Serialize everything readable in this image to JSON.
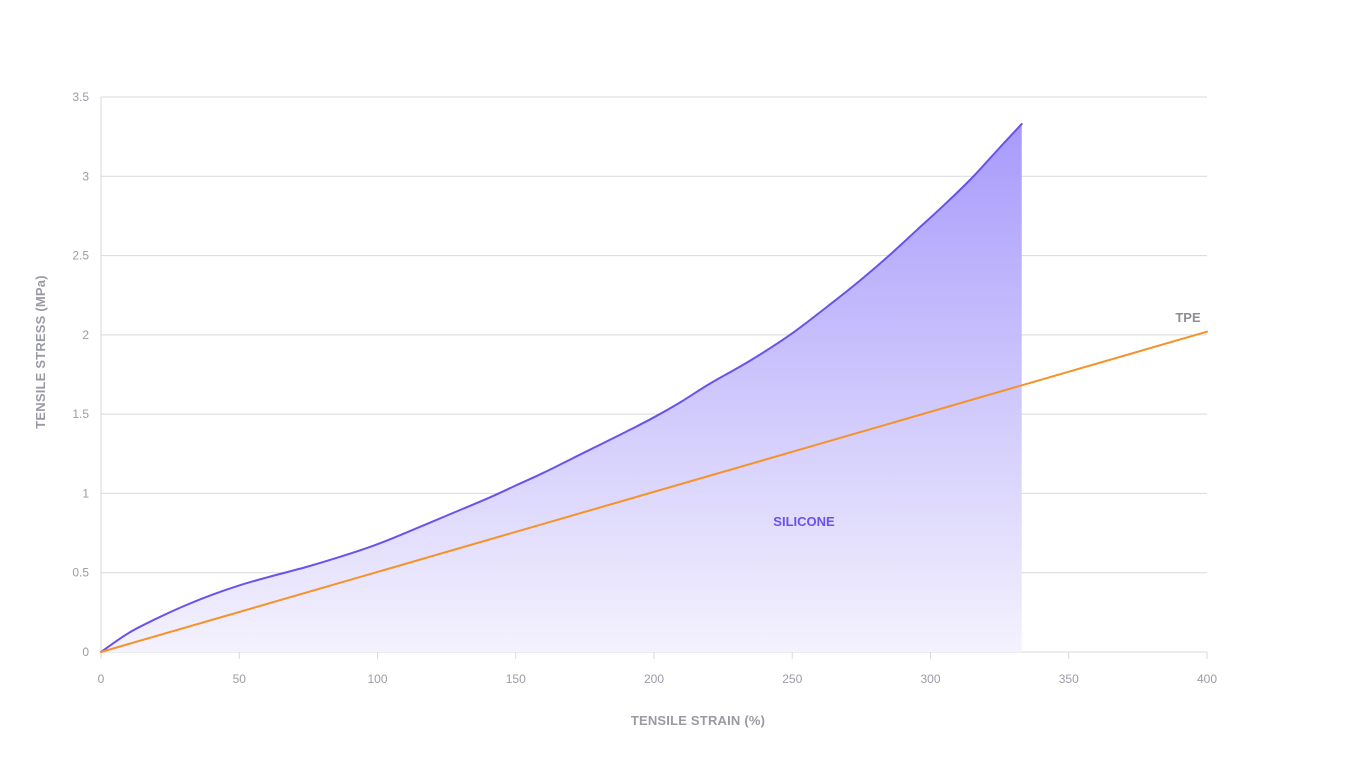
{
  "chart_data": {
    "type": "area",
    "title": "",
    "xlabel": "TENSILE STRAIN (%)",
    "ylabel": "TENSILE STRESS (MPa)",
    "xlim": [
      0,
      400
    ],
    "ylim": [
      0,
      3.5
    ],
    "x_ticks": [
      0,
      50,
      100,
      150,
      200,
      250,
      300,
      350,
      400
    ],
    "x_tick_labels": [
      "0",
      "50",
      "100",
      "150",
      "200",
      "250",
      "300",
      "350",
      "400"
    ],
    "y_ticks": [
      0,
      0.5,
      1,
      1.5,
      2,
      2.5,
      3,
      3.5
    ],
    "y_tick_labels": [
      "0",
      "0.5",
      "1",
      "1.5",
      "2",
      "2.5",
      "3",
      "3.5"
    ],
    "grid": true,
    "series": [
      {
        "name": "SILICONE",
        "style": "area",
        "color": "#6b52ec",
        "fill_top_color": "#a79bfb",
        "fill_bottom_color": "#f4f2fd",
        "x": [
          0,
          10,
          20,
          30,
          40,
          50,
          60,
          75,
          90,
          100,
          110,
          125,
          140,
          150,
          160,
          175,
          190,
          200,
          210,
          220,
          235,
          250,
          265,
          275,
          285,
          295,
          305,
          315,
          325,
          333
        ],
        "y": [
          0,
          0.12,
          0.21,
          0.29,
          0.36,
          0.42,
          0.47,
          0.54,
          0.62,
          0.68,
          0.75,
          0.86,
          0.97,
          1.05,
          1.13,
          1.26,
          1.39,
          1.48,
          1.58,
          1.69,
          1.84,
          2.01,
          2.21,
          2.35,
          2.5,
          2.66,
          2.82,
          2.99,
          3.18,
          3.33
        ]
      },
      {
        "name": "TPE",
        "style": "line",
        "color": "#f5922c",
        "x": [
          0,
          400
        ],
        "y": [
          0,
          2.02
        ]
      }
    ]
  }
}
